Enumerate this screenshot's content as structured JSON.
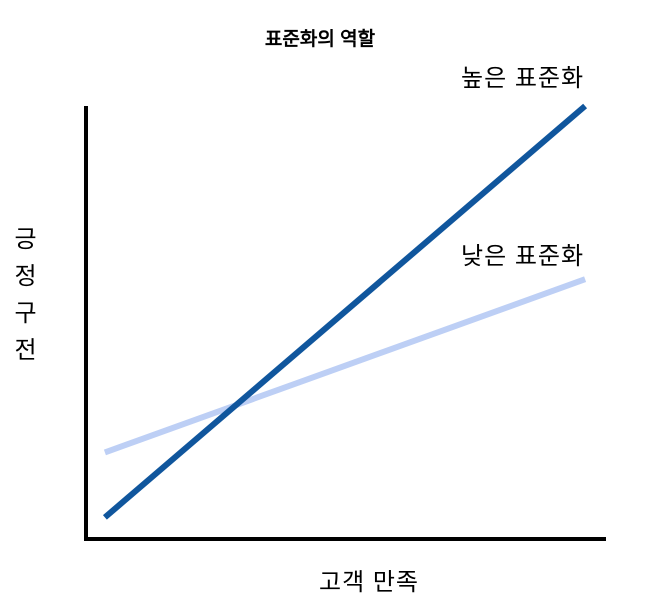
{
  "chart_data": {
    "type": "line",
    "title": "표준화의 역할",
    "xlabel": "고객 만족",
    "ylabel": "긍정구전",
    "grid": false,
    "ticks": "none",
    "legend": "inline labels above right ends of lines",
    "axis_color": "#000000",
    "x_range": [
      0,
      1
    ],
    "y_range": [
      0,
      1
    ],
    "series": [
      {
        "name": "높은 표준화",
        "color": "#10569D",
        "stroke_width": 6,
        "x": [
          0.04,
          0.96
        ],
        "y": [
          0.05,
          1.0
        ]
      },
      {
        "name": "낮은 표준화",
        "color": "#BDCFF5",
        "stroke_width": 6,
        "x": [
          0.04,
          0.96
        ],
        "y": [
          0.2,
          0.6
        ]
      }
    ]
  }
}
